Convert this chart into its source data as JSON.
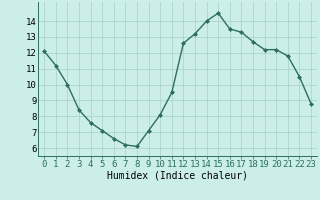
{
  "x": [
    0,
    1,
    2,
    3,
    4,
    5,
    6,
    7,
    8,
    9,
    10,
    11,
    12,
    13,
    14,
    15,
    16,
    17,
    18,
    19,
    20,
    21,
    22,
    23
  ],
  "y": [
    12.1,
    11.2,
    10.0,
    8.4,
    7.6,
    7.1,
    6.6,
    6.2,
    6.1,
    7.1,
    8.1,
    9.5,
    12.6,
    13.2,
    14.0,
    14.5,
    13.5,
    13.3,
    12.7,
    12.2,
    12.2,
    11.8,
    10.5,
    8.8
  ],
  "line_color": "#2d6e63",
  "bg_color": "#cceee8",
  "grid_color": "#aed4cc",
  "xlabel": "Humidex (Indice chaleur)",
  "ylim": [
    5.5,
    15.2
  ],
  "xlim": [
    -0.5,
    23.5
  ],
  "yticks": [
    6,
    7,
    8,
    9,
    10,
    11,
    12,
    13,
    14
  ],
  "xticks": [
    0,
    1,
    2,
    3,
    4,
    5,
    6,
    7,
    8,
    9,
    10,
    11,
    12,
    13,
    14,
    15,
    16,
    17,
    18,
    19,
    20,
    21,
    22,
    23
  ],
  "marker": "D",
  "markersize": 2.0,
  "linewidth": 1.0,
  "tick_fontsize": 6.5,
  "xlabel_fontsize": 7.0
}
